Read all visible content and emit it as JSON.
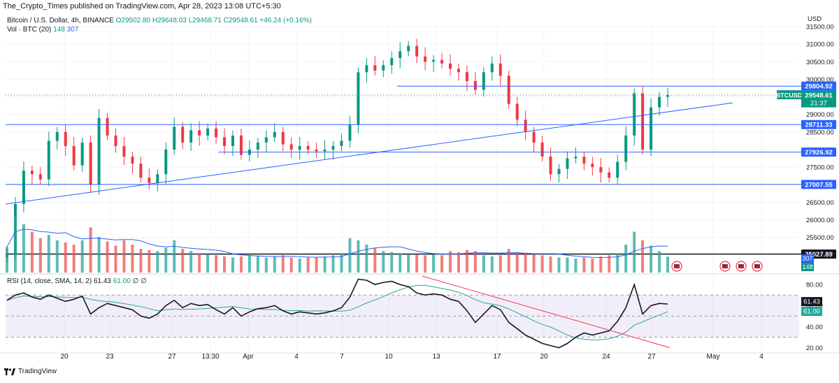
{
  "header": {
    "published_by": "The_Crypto_Times published on TradingView.com, Apr 28, 2023 13:08 UTC+5:30"
  },
  "legend": {
    "symbol": "Bitcoin / U.S. Dollar, 4h, BINANCE",
    "ohlc": "O29502.80 H29648.03 L29468.71 C29548.61 +46.24 (+0.16%)",
    "volume_label": "Vol · BTC (20)",
    "volume_value": "148",
    "volume_ma": "307",
    "rsi_label": "RSI (14, close, SMA, 14, 2)",
    "rsi_value": "61.43",
    "rsi_ma": "61.00",
    "rsi_extra": "∅ ∅"
  },
  "brand": {
    "name": "TradingView"
  },
  "colors": {
    "up": "#089981",
    "down": "#f23645",
    "level_line": "#2962ff",
    "rsi": "#131722",
    "rsi_ma": "#26a69a",
    "rsi_band": "#7e57c2",
    "trend_rsi": "#f23645"
  },
  "chart_data": [
    {
      "type": "candlestick",
      "symbol": "BTCUSD",
      "interval": "4h",
      "currency": "USD",
      "ylim": [
        24500,
        31500
      ],
      "y_ticks": [
        25000,
        25500,
        26000,
        26500,
        27000,
        27500,
        28000,
        28500,
        29000,
        29500,
        30000,
        30500,
        31000,
        31500
      ],
      "x_tick_labels": [
        "20",
        "23",
        "27",
        "13:30",
        "Apr",
        "4",
        "7",
        "10",
        "13",
        "17",
        "20",
        "24",
        "27",
        "May",
        "4"
      ],
      "price_levels": [
        {
          "label": "29804.92",
          "value": 29804.92
        },
        {
          "label": "28711.33",
          "value": 28711.33
        },
        {
          "label": "27926.92",
          "value": 27926.92
        },
        {
          "label": "27007.55",
          "value": 27007.55
        },
        {
          "label": "25027.89",
          "value": 25027.89
        }
      ],
      "last_price": {
        "symbol": "BTCUSD",
        "price": "29548.61",
        "countdown": "21:37"
      },
      "trendline_start": 26450,
      "trendline_end": 29330,
      "close_path": [
        25050,
        26450,
        27400,
        27300,
        27150,
        28250,
        28500,
        28100,
        27550,
        28200,
        27000,
        28900,
        28400,
        28100,
        27800,
        27600,
        27200,
        27050,
        27300,
        28000,
        28650,
        28200,
        28550,
        28400,
        28600,
        28350,
        28100,
        28400,
        27850,
        28000,
        28200,
        28350,
        28500,
        28150,
        28000,
        28100,
        28000,
        27950,
        28000,
        28100,
        28250,
        28700,
        30200,
        30400,
        30250,
        30400,
        30600,
        30800,
        30950,
        30650,
        30500,
        30550,
        30450,
        30300,
        30200,
        29950,
        29700,
        30200,
        30450,
        30100,
        29300,
        28850,
        28500,
        28200,
        27800,
        27300,
        27450,
        27750,
        27800,
        27600,
        27500,
        27350,
        27200,
        27650,
        28400,
        29600,
        28000,
        29200,
        29500,
        29548.61
      ]
    },
    {
      "type": "bar",
      "name": "Vol · BTC (20)",
      "last_value": 148,
      "ma_value": 307,
      "value_path": [
        240,
        520,
        450,
        380,
        320,
        350,
        300,
        280,
        260,
        300,
        420,
        330,
        290,
        250,
        300,
        260,
        220,
        210,
        200,
        230,
        300,
        220,
        200,
        180,
        170,
        160,
        150,
        140,
        150,
        160,
        150,
        140,
        150,
        160,
        140,
        130,
        140,
        140,
        150,
        160,
        180,
        320,
        300,
        260,
        230,
        200,
        190,
        180,
        170,
        170,
        160,
        170,
        160,
        200,
        190,
        210,
        200,
        160,
        150,
        160,
        220,
        190,
        180,
        170,
        160,
        150,
        140,
        140,
        130,
        140,
        130,
        150,
        160,
        180,
        260,
        380,
        300,
        250,
        200,
        148
      ]
    },
    {
      "type": "line",
      "name": "RSI (14, close, SMA, 14, 2)",
      "ylim": [
        15,
        90
      ],
      "y_ticks": [
        20,
        40,
        60,
        80
      ],
      "band": [
        30,
        70
      ],
      "last_value": 61.43,
      "ma_value": 61.0,
      "value_path": [
        65,
        70,
        72,
        68,
        66,
        70,
        67,
        64,
        66,
        69,
        52,
        58,
        62,
        60,
        58,
        56,
        50,
        48,
        52,
        60,
        65,
        58,
        62,
        60,
        61,
        56,
        52,
        58,
        50,
        54,
        57,
        58,
        60,
        55,
        52,
        54,
        53,
        52,
        53,
        55,
        58,
        68,
        85,
        84,
        80,
        82,
        83,
        80,
        78,
        72,
        70,
        71,
        70,
        66,
        64,
        55,
        44,
        52,
        60,
        56,
        44,
        38,
        32,
        28,
        24,
        22,
        20,
        24,
        30,
        34,
        32,
        34,
        36,
        45,
        58,
        80,
        52,
        60,
        62,
        61.43
      ]
    }
  ]
}
